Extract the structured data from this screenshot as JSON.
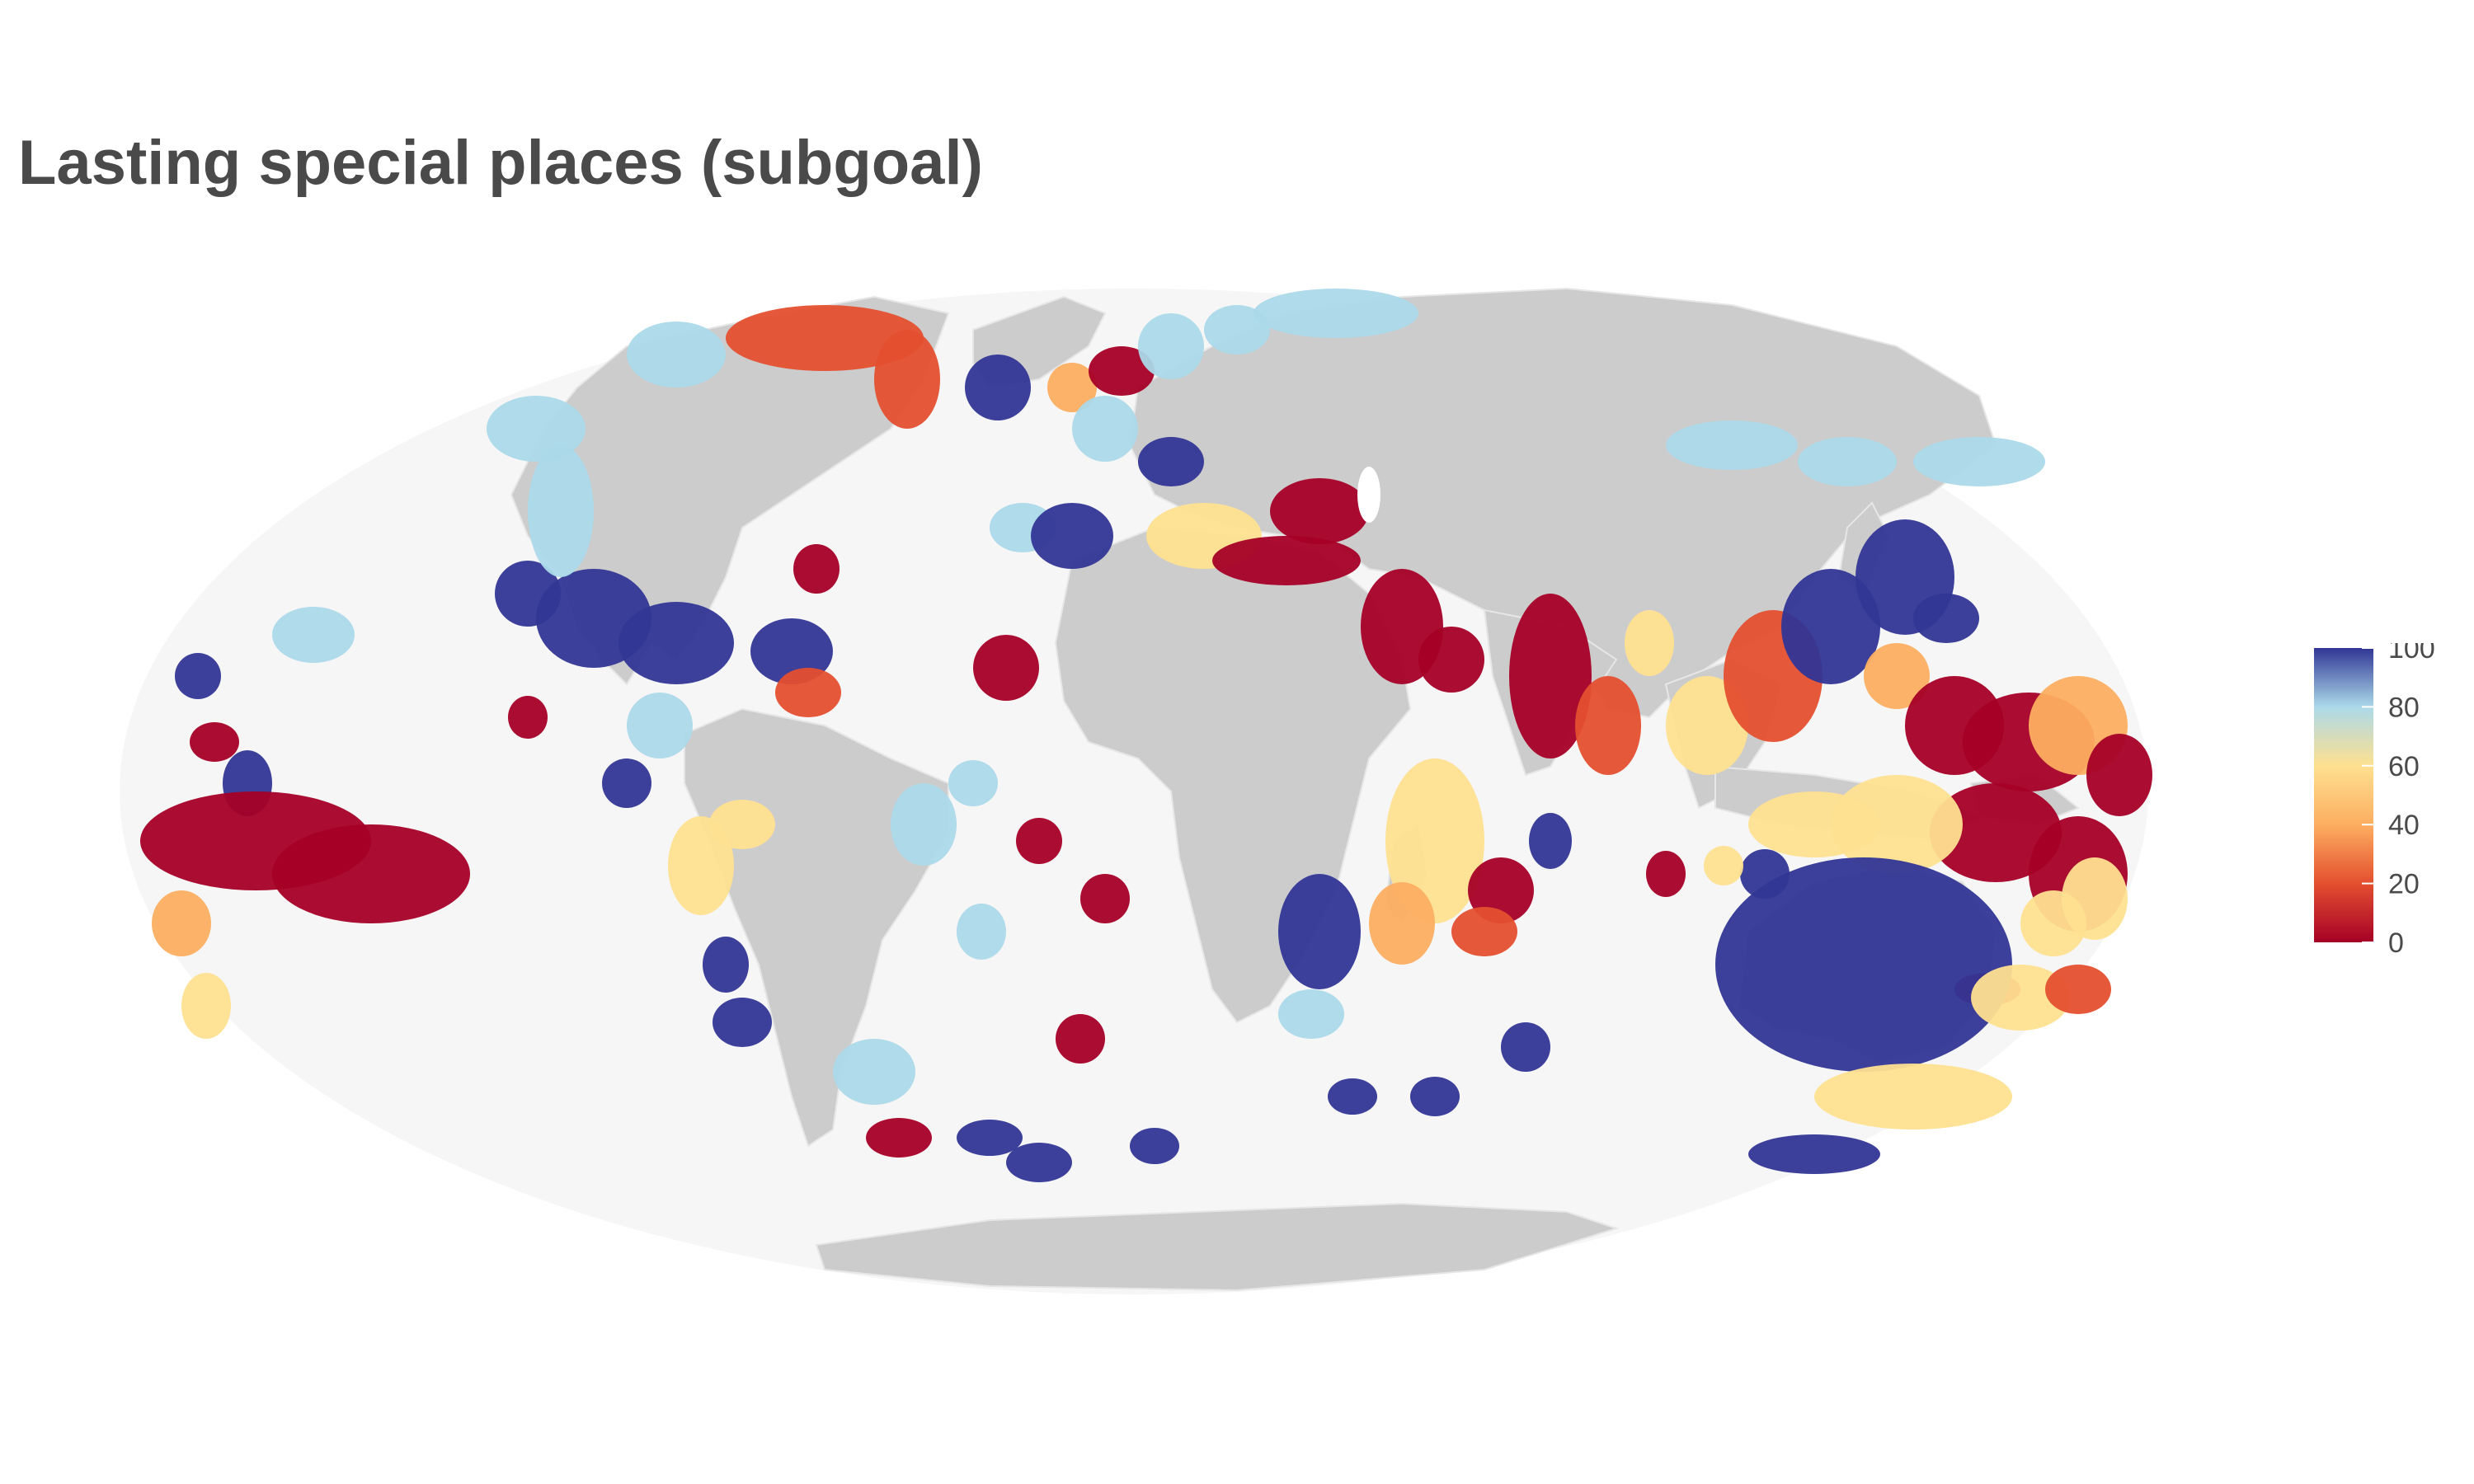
{
  "title": "Lasting special places (subgoal)",
  "colors": {
    "ocean": "#f6f6f6",
    "land": "#cccccc",
    "border": "#e4e4e4",
    "title": "#4a4a4a"
  },
  "legend": {
    "min": 0,
    "max": 100,
    "ticks": [
      {
        "value": 100,
        "label": "100"
      },
      {
        "value": 80,
        "label": "80"
      },
      {
        "value": 60,
        "label": "60"
      },
      {
        "value": 40,
        "label": "40"
      },
      {
        "value": 20,
        "label": "20"
      },
      {
        "value": 0,
        "label": "0"
      }
    ],
    "gradient": [
      {
        "value": 0,
        "color": "#a50026"
      },
      {
        "value": 20,
        "color": "#e44f2f"
      },
      {
        "value": 40,
        "color": "#fdae61"
      },
      {
        "value": 60,
        "color": "#fee090"
      },
      {
        "value": 80,
        "color": "#abd9e9"
      },
      {
        "value": 100,
        "color": "#313695"
      }
    ]
  }
}
